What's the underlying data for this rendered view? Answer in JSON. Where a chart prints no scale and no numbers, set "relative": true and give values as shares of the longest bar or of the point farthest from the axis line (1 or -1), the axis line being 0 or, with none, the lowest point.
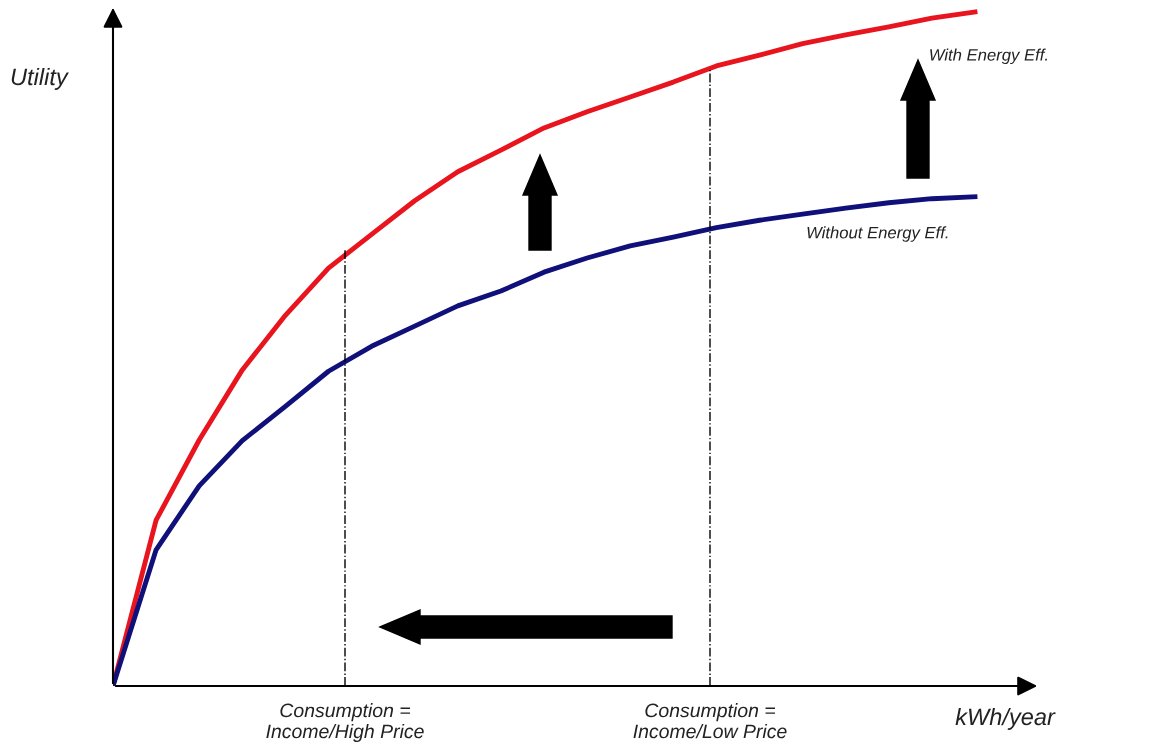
{
  "chart_data": {
    "type": "line",
    "relative": true,
    "xlabel": "kWh/year",
    "ylabel": "Utility",
    "categories": [
      null,
      null,
      null,
      null,
      null,
      null,
      null,
      null,
      null,
      null,
      null,
      null,
      null,
      null,
      null,
      null,
      null,
      null,
      null,
      null,
      null
    ],
    "series": [
      {
        "name": "With Energy Eff.",
        "color": "#e8141e",
        "values": [
          0,
          0.246,
          0.365,
          0.469,
          0.55,
          0.62,
          0.67,
          0.72,
          0.763,
          0.795,
          0.828,
          0.852,
          0.874,
          0.896,
          0.92,
          0.936,
          0.953,
          0.966,
          0.978,
          0.991,
          1
        ]
      },
      {
        "name": "Without Energy Eff.",
        "color": "#10107a",
        "values": [
          0,
          0.202,
          0.297,
          0.364,
          0.415,
          0.467,
          0.504,
          0.534,
          0.564,
          0.586,
          0.614,
          0.635,
          0.653,
          0.666,
          0.68,
          0.691,
          0.7,
          0.709,
          0.717,
          0.723,
          0.726
        ]
      }
    ],
    "annotations": [
      "Consumption =\nIncome/High Price",
      "Consumption =\nIncome/Low Price"
    ],
    "grid": false,
    "legend": false,
    "marker": "none",
    "line_style": "solid"
  }
}
